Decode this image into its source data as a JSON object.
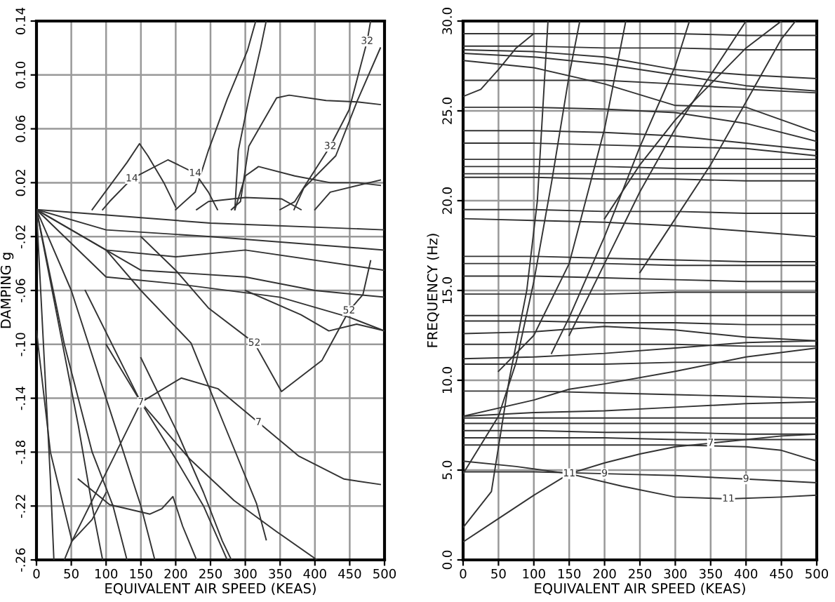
{
  "chart_data": [
    {
      "type": "line",
      "xlabel": "EQUIVALENT AIR SPEED (KEAS)",
      "ylabel": "DAMPING g",
      "xlim": [
        0,
        500
      ],
      "ylim": [
        -0.26,
        0.14
      ],
      "xticks": [
        0,
        50,
        100,
        150,
        200,
        250,
        300,
        350,
        400,
        450,
        500
      ],
      "yticks": [
        {
          "value": 0.14,
          "label": "0.14"
        },
        {
          "value": 0.1,
          "label": "0.10"
        },
        {
          "value": 0.06,
          "label": "0.06"
        },
        {
          "value": 0.02,
          "label": "0.02"
        },
        {
          "value": -0.02,
          "label": "-.02"
        },
        {
          "value": -0.06,
          "label": "-.06"
        },
        {
          "value": -0.1,
          "label": "-.10"
        },
        {
          "value": -0.14,
          "label": "-.14"
        },
        {
          "value": -0.18,
          "label": "-.18"
        },
        {
          "value": -0.22,
          "label": "-.22"
        },
        {
          "value": -0.26,
          "label": "-.26"
        }
      ],
      "grid": true,
      "line_style": "solid",
      "marker": "none",
      "series": [
        {
          "color": "#333333",
          "x": [
            200,
            228,
            247,
            274,
            303,
            315
          ],
          "values": [
            0,
            0.013,
            0.044,
            0.082,
            0.118,
            0.14
          ]
        },
        {
          "color": "#333333",
          "x": [
            285,
            290,
            305,
            322,
            330
          ],
          "values": [
            0,
            0.044,
            0.082,
            0.12,
            0.14
          ]
        },
        {
          "color": "#333333",
          "x": [
            280,
            293,
            305,
            345,
            363,
            416,
            461,
            494
          ],
          "values": [
            0,
            0.006,
            0.047,
            0.083,
            0.085,
            0.081,
            0.08,
            0.078
          ]
        },
        {
          "name": "32",
          "color": "#333333",
          "x": [
            350,
            371,
            422,
            449,
            475,
            480
          ],
          "values": [
            0,
            0.006,
            0.047,
            0.074,
            0.125,
            0.14
          ]
        },
        {
          "color": "#333333",
          "x": [
            370,
            384,
            430,
            461,
            494
          ],
          "values": [
            0,
            0.016,
            0.04,
            0.081,
            0.12
          ]
        },
        {
          "color": "#333333",
          "x": [
            80,
            130,
            148,
            160,
            183,
            200
          ],
          "values": [
            0,
            0.035,
            0.049,
            0.04,
            0.02,
            0.002
          ]
        },
        {
          "name": "14",
          "color": "#333333",
          "x": [
            95,
            105,
            137,
            189,
            228,
            247,
            260
          ],
          "values": [
            0,
            0.006,
            0.023,
            0.037,
            0.027,
            0.013,
            0
          ]
        },
        {
          "color": "#333333",
          "x": [
            285,
            300,
            319,
            371,
            422,
            461,
            494
          ],
          "values": [
            0,
            0.025,
            0.032,
            0.025,
            0.02,
            0.02,
            0.018
          ]
        },
        {
          "color": "#333333",
          "x": [
            230,
            247,
            300,
            352,
            380
          ],
          "values": [
            0,
            0.006,
            0.009,
            0.008,
            0
          ]
        },
        {
          "color": "#333333",
          "x": [
            400,
            422,
            494
          ],
          "values": [
            0,
            0.013,
            0.022
          ]
        },
        {
          "name": "7",
          "color": "#333333",
          "x": [
            40,
            51,
            105,
            150,
            208,
            261,
            319,
            377,
            442,
            494
          ],
          "values": [
            -0.26,
            -0.246,
            -0.19,
            -0.143,
            -0.125,
            -0.133,
            -0.158,
            -0.183,
            -0.2,
            -0.204
          ]
        },
        {
          "name": "52",
          "color": "#333333",
          "x": [
            150,
            200,
            247,
            313,
            352,
            410,
            449,
            469,
            480
          ],
          "values": [
            -0.02,
            -0.045,
            -0.073,
            -0.099,
            -0.135,
            -0.112,
            -0.075,
            -0.063,
            -0.038
          ]
        },
        {
          "color": "#333333",
          "x": [
            100,
            150,
            222,
            270,
            316,
            330
          ],
          "values": [
            -0.03,
            -0.06,
            -0.099,
            -0.16,
            -0.218,
            -0.245
          ]
        },
        {
          "color": "#333333",
          "x": [
            70,
            150,
            220,
            284,
            345,
            403
          ],
          "values": [
            -0.06,
            -0.143,
            -0.185,
            -0.216,
            -0.239,
            -0.26
          ]
        },
        {
          "color": "#333333",
          "x": [
            100,
            150,
            200,
            240,
            274
          ],
          "values": [
            -0.1,
            -0.143,
            -0.185,
            -0.22,
            -0.26
          ]
        },
        {
          "color": "#333333",
          "x": [
            150,
            202,
            240,
            267,
            280
          ],
          "values": [
            -0.11,
            -0.165,
            -0.21,
            -0.246,
            -0.26
          ]
        },
        {
          "color": "#333333",
          "x": [
            0,
            10,
            20,
            25
          ],
          "values": [
            0,
            -0.1,
            -0.2,
            -0.26
          ]
        },
        {
          "color": "#333333",
          "x": [
            0,
            30,
            60,
            80,
            95
          ],
          "values": [
            0,
            -0.08,
            -0.16,
            -0.22,
            -0.26
          ]
        },
        {
          "color": "#333333",
          "x": [
            0,
            50,
            100,
            150,
            170
          ],
          "values": [
            0,
            -0.06,
            -0.14,
            -0.22,
            -0.26
          ]
        },
        {
          "color": "#333333",
          "x": [
            0,
            40,
            80,
            110,
            130
          ],
          "values": [
            0,
            -0.1,
            -0.18,
            -0.22,
            -0.26
          ]
        },
        {
          "color": "#333333",
          "x": [
            0,
            20,
            51,
            80,
            100
          ],
          "values": [
            -0.09,
            -0.18,
            -0.246,
            -0.23,
            -0.21
          ]
        },
        {
          "color": "#333333",
          "x": [
            60,
            105,
            163,
            180,
            196,
            210,
            230
          ],
          "values": [
            -0.2,
            -0.219,
            -0.226,
            -0.222,
            -0.213,
            -0.235,
            -0.26
          ]
        },
        {
          "color": "#333333",
          "x": [
            0,
            250,
            500
          ],
          "values": [
            0,
            -0.01,
            -0.015
          ]
        },
        {
          "color": "#333333",
          "x": [
            0,
            100,
            250,
            500
          ],
          "values": [
            0,
            -0.015,
            -0.02,
            -0.03
          ]
        },
        {
          "color": "#333333",
          "x": [
            0,
            100,
            200,
            300,
            500
          ],
          "values": [
            0,
            -0.03,
            -0.035,
            -0.03,
            -0.045
          ]
        },
        {
          "color": "#333333",
          "x": [
            0,
            150,
            300,
            400,
            500
          ],
          "values": [
            0,
            -0.045,
            -0.05,
            -0.06,
            -0.065
          ]
        },
        {
          "color": "#333333",
          "x": [
            0,
            100,
            200,
            350,
            450,
            500
          ],
          "values": [
            0,
            -0.05,
            -0.055,
            -0.065,
            -0.08,
            -0.09
          ]
        },
        {
          "color": "#333333",
          "x": [
            300,
            380,
            420,
            460,
            500
          ],
          "values": [
            -0.06,
            -0.078,
            -0.09,
            -0.085,
            -0.09
          ]
        }
      ]
    },
    {
      "type": "line",
      "xlabel": "EQUIVALENT AIR SPEED (KEAS)",
      "ylabel": "FREQUENCY (Hz)",
      "xlim": [
        0,
        500
      ],
      "ylim": [
        0,
        30
      ],
      "xticks": [
        0,
        50,
        100,
        150,
        200,
        250,
        300,
        350,
        400,
        450,
        500
      ],
      "yticks": [
        {
          "value": 0,
          "label": "0.0"
        },
        {
          "value": 5,
          "label": "5.0"
        },
        {
          "value": 10,
          "label": "10.0"
        },
        {
          "value": 15,
          "label": "15.0"
        },
        {
          "value": 20,
          "label": "20.0"
        },
        {
          "value": 25,
          "label": "25.0"
        },
        {
          "value": 30,
          "label": "30.0"
        }
      ],
      "grid": true,
      "line_style": "solid",
      "marker": "none",
      "series": [
        {
          "color": "#333333",
          "x": [
            0,
            100,
            200,
            300,
            400,
            500
          ],
          "values": [
            29.3,
            29.3,
            29.3,
            29.3,
            29.2,
            29.2
          ]
        },
        {
          "color": "#333333",
          "x": [
            0,
            100,
            200,
            300,
            400,
            500
          ],
          "values": [
            28.6,
            28.6,
            28.5,
            28.5,
            28.4,
            28.4
          ]
        },
        {
          "color": "#333333",
          "x": [
            0,
            100,
            200,
            300,
            400,
            500
          ],
          "values": [
            28.4,
            28.3,
            28.0,
            27.3,
            27.0,
            26.8
          ]
        },
        {
          "color": "#333333",
          "x": [
            0,
            100,
            200,
            300,
            400,
            500
          ],
          "values": [
            28.2,
            28.0,
            27.6,
            27.0,
            26.4,
            26.1
          ]
        },
        {
          "color": "#333333",
          "x": [
            0,
            100,
            200,
            300,
            400,
            500
          ],
          "values": [
            27.8,
            27.4,
            26.5,
            25.3,
            25.2,
            23.8
          ]
        },
        {
          "color": "#333333",
          "x": [
            0,
            100,
            200,
            300,
            400,
            500
          ],
          "values": [
            26.7,
            26.7,
            26.7,
            26.5,
            26.2,
            26.0
          ]
        },
        {
          "color": "#333333",
          "x": [
            0,
            25,
            50,
            75,
            100
          ],
          "values": [
            25.8,
            26.2,
            27.3,
            28.5,
            29.3
          ]
        },
        {
          "color": "#333333",
          "x": [
            0,
            100,
            200,
            300,
            400,
            500
          ],
          "values": [
            25.2,
            25.2,
            25.1,
            24.9,
            24.3,
            23.3
          ]
        },
        {
          "color": "#333333",
          "x": [
            0,
            100,
            200,
            300,
            400,
            500
          ],
          "values": [
            23.9,
            23.9,
            23.8,
            23.6,
            23.2,
            22.8
          ]
        },
        {
          "color": "#333333",
          "x": [
            0,
            100,
            200,
            300,
            400,
            500
          ],
          "values": [
            23.2,
            23.2,
            23.1,
            23.0,
            22.9,
            22.5
          ]
        },
        {
          "color": "#333333",
          "x": [
            0,
            100,
            200,
            300,
            400,
            500
          ],
          "values": [
            22.3,
            22.3,
            22.3,
            22.3,
            22.3,
            22.3
          ]
        },
        {
          "color": "#333333",
          "x": [
            0,
            100,
            200,
            300,
            400,
            500
          ],
          "values": [
            21.9,
            21.9,
            21.9,
            21.8,
            21.8,
            21.8
          ]
        },
        {
          "color": "#333333",
          "x": [
            0,
            100,
            200,
            300,
            400,
            500
          ],
          "values": [
            21.5,
            21.5,
            21.5,
            21.5,
            21.5,
            21.5
          ]
        },
        {
          "color": "#333333",
          "x": [
            0,
            100,
            200,
            300,
            400,
            500
          ],
          "values": [
            21.3,
            21.3,
            21.2,
            21.2,
            21.1,
            21.1
          ]
        },
        {
          "color": "#333333",
          "x": [
            0,
            100,
            200,
            300,
            400,
            500
          ],
          "values": [
            19.5,
            19.5,
            19.4,
            19.4,
            19.3,
            19.3
          ]
        },
        {
          "color": "#333333",
          "x": [
            0,
            100,
            200,
            300,
            400,
            500
          ],
          "values": [
            19.0,
            18.9,
            18.8,
            18.6,
            18.3,
            18.0
          ]
        },
        {
          "color": "#333333",
          "x": [
            0,
            100,
            200,
            300,
            400,
            500
          ],
          "values": [
            16.9,
            16.9,
            16.8,
            16.7,
            16.6,
            16.6
          ]
        },
        {
          "color": "#333333",
          "x": [
            0,
            100,
            200,
            300,
            400,
            500
          ],
          "values": [
            16.5,
            16.5,
            16.5,
            16.4,
            16.4,
            16.4
          ]
        },
        {
          "color": "#333333",
          "x": [
            0,
            100,
            200,
            300,
            400,
            500
          ],
          "values": [
            15.8,
            15.8,
            15.7,
            15.6,
            15.5,
            15.5
          ]
        },
        {
          "color": "#333333",
          "x": [
            0,
            100,
            200,
            300,
            400,
            500
          ],
          "values": [
            14.8,
            14.8,
            14.8,
            14.9,
            14.9,
            14.9
          ]
        },
        {
          "color": "#333333",
          "x": [
            0,
            100,
            200,
            300,
            400,
            500
          ],
          "values": [
            13.6,
            13.6,
            13.6,
            13.6,
            13.6,
            13.6
          ]
        },
        {
          "color": "#333333",
          "x": [
            0,
            100,
            200,
            300,
            400,
            500
          ],
          "values": [
            13.3,
            13.3,
            13.2,
            13.2,
            13.1,
            13.1
          ]
        },
        {
          "color": "#333333",
          "x": [
            0,
            100,
            200,
            300,
            400,
            500
          ],
          "values": [
            12.6,
            12.7,
            13.0,
            12.8,
            12.4,
            12.2
          ]
        },
        {
          "color": "#333333",
          "x": [
            0,
            100,
            200,
            300,
            400,
            500
          ],
          "values": [
            12.0,
            12.0,
            12.0,
            12.0,
            11.9,
            11.9
          ]
        },
        {
          "color": "#333333",
          "x": [
            0,
            100,
            200,
            300,
            400,
            500
          ],
          "values": [
            11.2,
            11.3,
            11.5,
            11.8,
            12.1,
            12.2
          ]
        },
        {
          "color": "#333333",
          "x": [
            0,
            100,
            200,
            300,
            400,
            500
          ],
          "values": [
            10.9,
            10.9,
            10.9,
            11.0,
            11.0,
            11.0
          ]
        },
        {
          "color": "#333333",
          "x": [
            0,
            100,
            150,
            200,
            300,
            400,
            500
          ],
          "values": [
            8.0,
            8.9,
            9.5,
            9.8,
            10.5,
            11.3,
            11.8
          ]
        },
        {
          "color": "#333333",
          "x": [
            0,
            100,
            200,
            300,
            400,
            500
          ],
          "values": [
            9.4,
            9.4,
            9.3,
            9.2,
            9.1,
            9.0
          ]
        },
        {
          "color": "#333333",
          "x": [
            0,
            100,
            200,
            300,
            400,
            500
          ],
          "values": [
            8.0,
            8.2,
            8.3,
            8.5,
            8.7,
            8.8
          ]
        },
        {
          "color": "#333333",
          "x": [
            0,
            100,
            200,
            300,
            400,
            500
          ],
          "values": [
            7.9,
            7.9,
            7.9,
            7.9,
            7.9,
            7.9
          ]
        },
        {
          "color": "#333333",
          "x": [
            0,
            100,
            200,
            300,
            400,
            500
          ],
          "values": [
            7.6,
            7.6,
            7.6,
            7.6,
            7.6,
            7.6
          ]
        },
        {
          "color": "#333333",
          "x": [
            0,
            100,
            200,
            300,
            400,
            500
          ],
          "values": [
            7.2,
            7.2,
            7.1,
            7.1,
            7.0,
            7.0
          ]
        },
        {
          "color": "#333333",
          "x": [
            0,
            100,
            200,
            300,
            400,
            500
          ],
          "values": [
            6.8,
            6.8,
            6.8,
            6.7,
            6.7,
            6.7
          ]
        },
        {
          "color": "#333333",
          "x": [
            0,
            100,
            200,
            300,
            400,
            450,
            500
          ],
          "values": [
            6.4,
            6.4,
            6.4,
            6.4,
            6.3,
            6.1,
            5.5
          ]
        },
        {
          "name": "7",
          "color": "#333333",
          "x": [
            0,
            50,
            100,
            150,
            200,
            250,
            300,
            350,
            400,
            450,
            500
          ],
          "values": [
            1.0,
            2.3,
            3.6,
            4.8,
            5.4,
            5.9,
            6.3,
            6.5,
            6.7,
            6.9,
            7.0
          ]
        },
        {
          "name": "9",
          "color": "#333333",
          "x": [
            0,
            100,
            200,
            300,
            400,
            500
          ],
          "values": [
            4.9,
            4.9,
            4.8,
            4.7,
            4.5,
            4.3
          ]
        },
        {
          "name": "11",
          "color": "#333333",
          "x": [
            0,
            75,
            150,
            225,
            300,
            375,
            450,
            500
          ],
          "values": [
            5.5,
            5.2,
            4.8,
            4.1,
            3.5,
            3.4,
            3.5,
            3.6
          ]
        },
        {
          "color": "#333333",
          "x": [
            0,
            40,
            65,
            90,
            105,
            120
          ],
          "values": [
            1.8,
            3.8,
            10,
            15,
            20,
            30
          ]
        },
        {
          "color": "#333333",
          "x": [
            0,
            50,
            75,
            100,
            125,
            150,
            165
          ],
          "values": [
            4.8,
            8,
            11,
            15.5,
            21,
            27,
            30
          ]
        },
        {
          "color": "#333333",
          "x": [
            50,
            100,
            150,
            200,
            230
          ],
          "values": [
            10.5,
            12.5,
            16.5,
            24,
            30
          ]
        },
        {
          "color": "#333333",
          "x": [
            125,
            150,
            200,
            250,
            300,
            320
          ],
          "values": [
            11.5,
            13.5,
            18,
            23,
            27.5,
            30
          ]
        },
        {
          "color": "#333333",
          "x": [
            150,
            200,
            250,
            300,
            350,
            400
          ],
          "values": [
            12.5,
            16.5,
            20.5,
            24,
            27,
            30
          ]
        },
        {
          "color": "#333333",
          "x": [
            250,
            300,
            350,
            400,
            450,
            470
          ],
          "values": [
            16,
            19,
            22,
            25.5,
            29,
            30
          ]
        },
        {
          "color": "#333333",
          "x": [
            200,
            250,
            300,
            350,
            400,
            450
          ],
          "values": [
            19,
            22,
            24.5,
            26.5,
            28.5,
            30
          ]
        }
      ]
    }
  ]
}
